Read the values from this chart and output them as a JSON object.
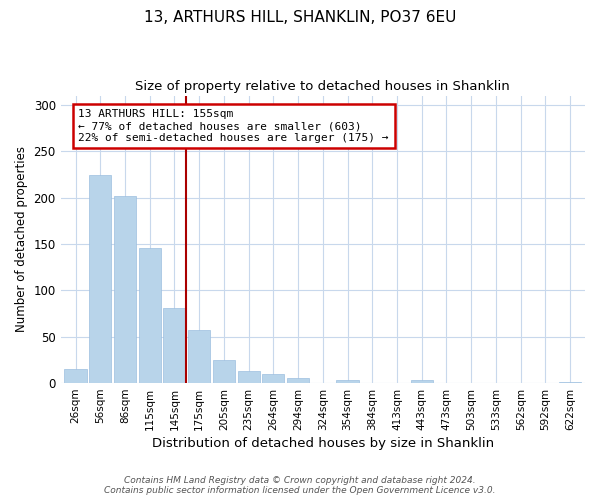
{
  "title": "13, ARTHURS HILL, SHANKLIN, PO37 6EU",
  "subtitle": "Size of property relative to detached houses in Shanklin",
  "xlabel": "Distribution of detached houses by size in Shanklin",
  "ylabel": "Number of detached properties",
  "bar_labels": [
    "26sqm",
    "56sqm",
    "86sqm",
    "115sqm",
    "145sqm",
    "175sqm",
    "205sqm",
    "235sqm",
    "264sqm",
    "294sqm",
    "324sqm",
    "354sqm",
    "384sqm",
    "413sqm",
    "443sqm",
    "473sqm",
    "503sqm",
    "533sqm",
    "562sqm",
    "592sqm",
    "622sqm"
  ],
  "bar_values": [
    15,
    224,
    202,
    146,
    81,
    57,
    25,
    13,
    10,
    6,
    0,
    3,
    0,
    0,
    3,
    0,
    0,
    0,
    0,
    0,
    1
  ],
  "bar_color": "#b8d4ea",
  "bar_edge_color": "#9dbfdf",
  "vline_color": "#aa0000",
  "annotation_title": "13 ARTHURS HILL: 155sqm",
  "annotation_line1": "← 77% of detached houses are smaller (603)",
  "annotation_line2": "22% of semi-detached houses are larger (175) →",
  "annotation_box_color": "#ffffff",
  "annotation_box_edge": "#cc0000",
  "ylim": [
    0,
    310
  ],
  "background_color": "#ffffff",
  "footer_line1": "Contains HM Land Registry data © Crown copyright and database right 2024.",
  "footer_line2": "Contains public sector information licensed under the Open Government Licence v3.0.",
  "grid_color": "#c8d8ec",
  "title_fontsize": 11,
  "subtitle_fontsize": 9.5
}
